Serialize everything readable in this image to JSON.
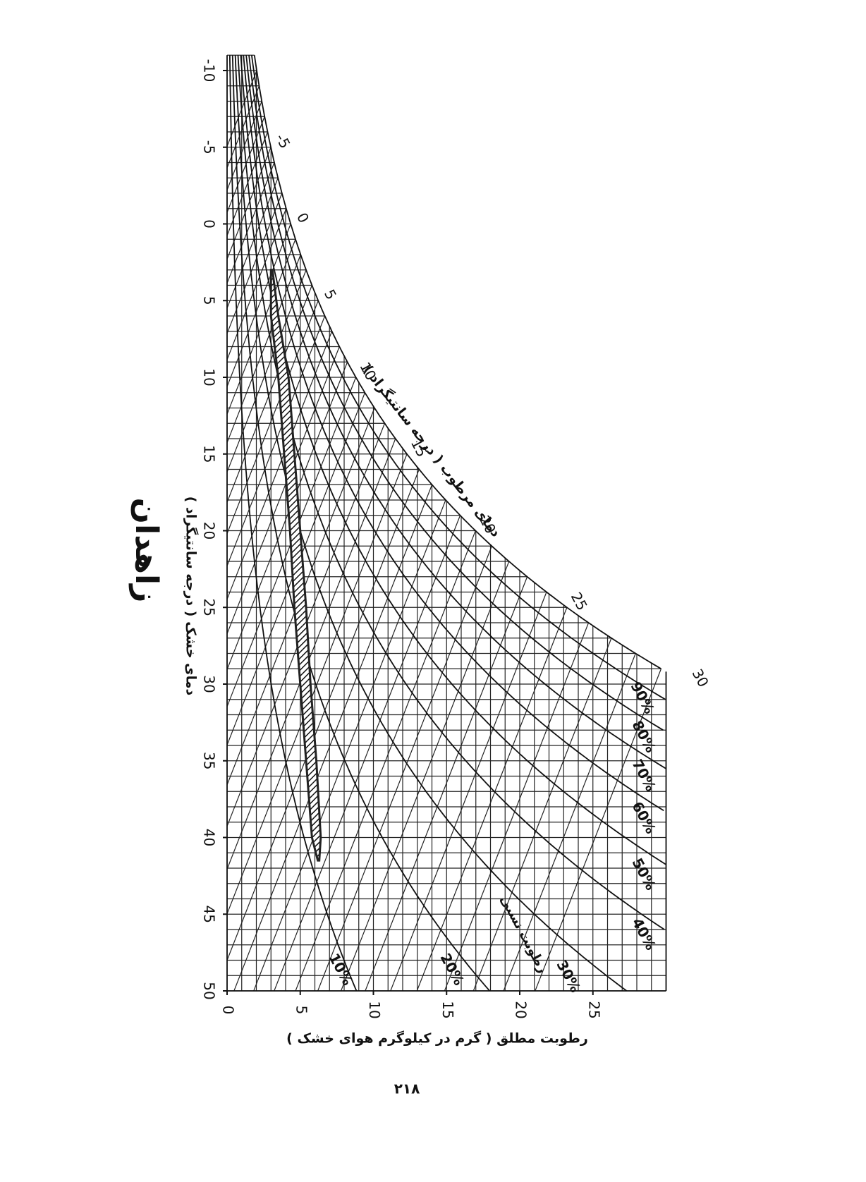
{
  "chart_data": {
    "type": "psychrometric",
    "title": "زاهدان",
    "x_label": "دمای خشک ( درجه سانتیگراد )",
    "y_label": "رطوبت مطلق ( گرم در کیلوگرم هوای خشک )",
    "wet_bulb_label": "دمای مرطوب ( درجه سانتیگراد )",
    "rh_label": "رطوبت نسبی",
    "page_number": "۲۱۸",
    "xlim": [
      -11,
      50
    ],
    "xticks": [
      -10,
      -5,
      0,
      5,
      10,
      15,
      20,
      25,
      30,
      35,
      40,
      45,
      50
    ],
    "ylim": [
      0,
      30
    ],
    "yticks": [
      0,
      5,
      10,
      15,
      20,
      25
    ],
    "wet_bulb_ticks": [
      -5,
      0,
      5,
      10,
      15,
      20,
      25,
      30
    ],
    "rh_curves": [
      {
        "value": 90,
        "label": "90%"
      },
      {
        "value": 80,
        "label": "80%"
      },
      {
        "value": 70,
        "label": "70%"
      },
      {
        "value": 60,
        "label": "60%"
      },
      {
        "value": 50,
        "label": "50%"
      },
      {
        "value": 40,
        "label": "40%"
      },
      {
        "value": 30,
        "label": "30%"
      },
      {
        "value": 20,
        "label": "20%"
      },
      {
        "value": 10,
        "label": "10%"
      }
    ],
    "band": {
      "x": [
        3,
        6,
        10,
        15,
        20,
        25,
        30,
        35,
        40,
        41.5
      ],
      "low": [
        3.0,
        3.0,
        3.5,
        3.9,
        4.3,
        4.6,
        5.0,
        5.4,
        5.8,
        6.2
      ],
      "high": [
        3.1,
        3.5,
        4.2,
        4.6,
        5.0,
        5.4,
        5.7,
        6.1,
        6.4,
        6.3
      ],
      "color": "#222222"
    },
    "grid": true
  }
}
